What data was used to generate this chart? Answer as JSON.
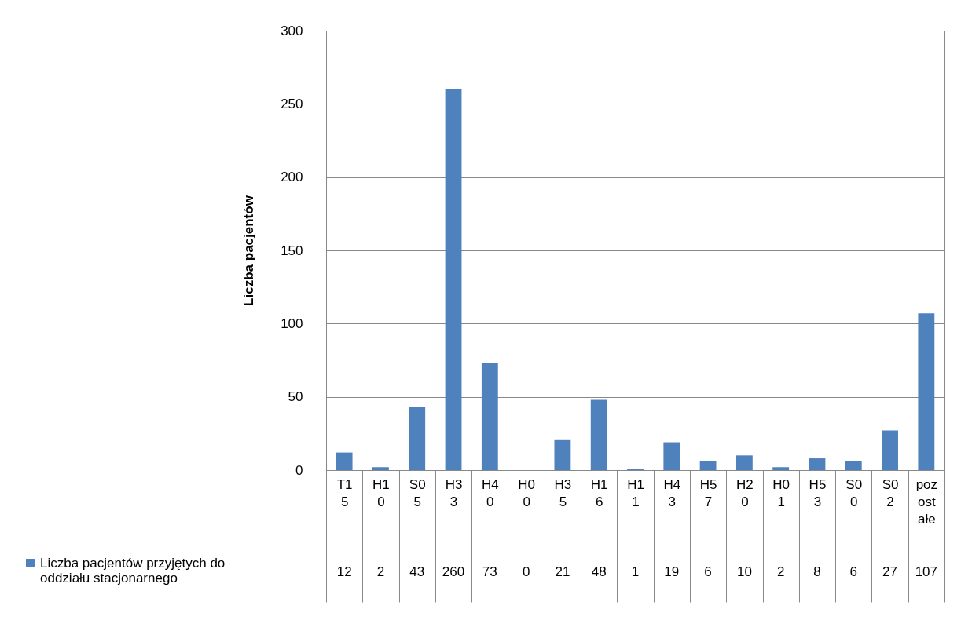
{
  "chart_data": {
    "type": "bar",
    "ylabel": "Liczba pacjentów",
    "categories": [
      "T15",
      "H10",
      "S05",
      "H33",
      "H40",
      "H00",
      "H35",
      "H16",
      "H11",
      "H43",
      "H57",
      "H20",
      "H01",
      "H53",
      "S00",
      "S02",
      "pozostałe"
    ],
    "series": [
      {
        "name": "Liczba pacjentów przyjętych do oddziału stacjonarnego",
        "color": "#4f81bd",
        "values": [
          12,
          2,
          43,
          260,
          73,
          0,
          21,
          48,
          1,
          19,
          6,
          10,
          2,
          8,
          6,
          27,
          107
        ]
      }
    ],
    "ylim": [
      0,
      300
    ],
    "yticks": [
      0,
      50,
      100,
      150,
      200,
      250,
      300
    ],
    "grid": "y",
    "data_labels": true,
    "legend": "bottom left"
  }
}
